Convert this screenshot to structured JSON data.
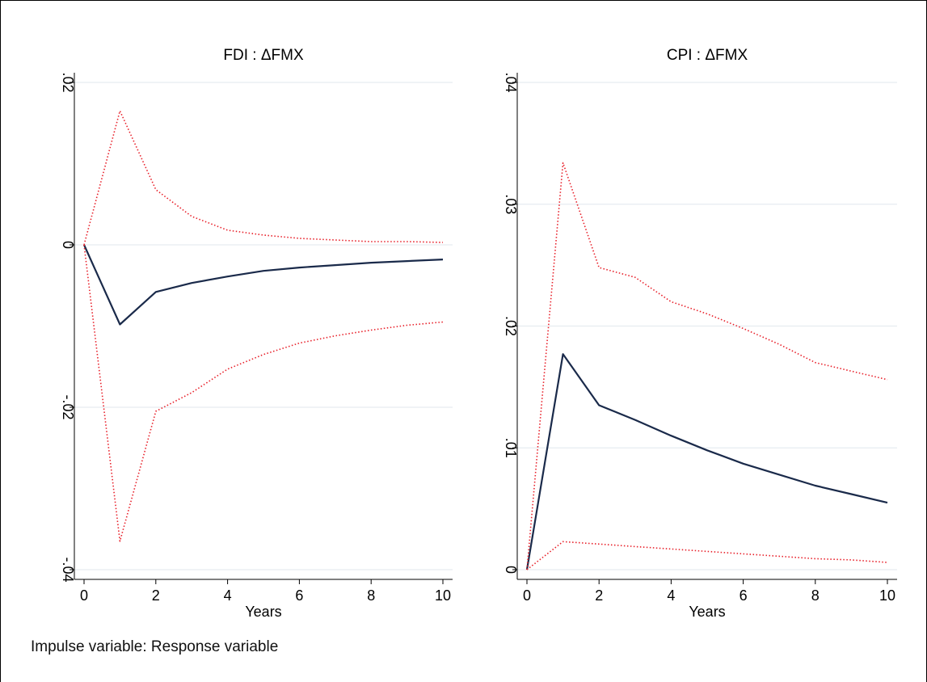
{
  "note": "Impulse variable: Response variable",
  "colors": {
    "irf": "#1a2a4a",
    "ci": "#e8202a",
    "grid": "#e6ecf0",
    "axis": "#000000"
  },
  "chart_data": [
    {
      "type": "line",
      "title": "FDI : ΔFMX",
      "xlabel": "Years",
      "ylabel": "",
      "xlim": [
        0,
        10
      ],
      "ylim": [
        -0.04,
        0.02
      ],
      "xticks": [
        0,
        2,
        4,
        6,
        8,
        10
      ],
      "xtick_labels": [
        "0",
        "2",
        "4",
        "6",
        "8",
        "10"
      ],
      "yticks": [
        -0.04,
        -0.02,
        0,
        0.02
      ],
      "ytick_labels": [
        "-.04",
        "-.02",
        "0",
        ".02"
      ],
      "grid": true,
      "x": [
        0,
        1,
        2,
        3,
        4,
        5,
        6,
        7,
        8,
        9,
        10
      ],
      "series": [
        {
          "role": "irf",
          "style": "solid",
          "values": [
            0,
            -0.0098,
            -0.0058,
            -0.0047,
            -0.0039,
            -0.0032,
            -0.0028,
            -0.0025,
            -0.0022,
            -0.002,
            -0.0018
          ]
        },
        {
          "role": "upper",
          "style": "dotted",
          "values": [
            0,
            0.0165,
            0.0068,
            0.0035,
            0.0018,
            0.0012,
            0.0008,
            0.0006,
            0.0004,
            0.0004,
            0.0003
          ]
        },
        {
          "role": "lower",
          "style": "dotted",
          "values": [
            0,
            -0.0365,
            -0.0205,
            -0.0182,
            -0.0153,
            -0.0135,
            -0.0121,
            -0.0112,
            -0.0105,
            -0.0099,
            -0.0095
          ]
        }
      ]
    },
    {
      "type": "line",
      "title": "CPI : ΔFMX",
      "xlabel": "Years",
      "ylabel": "",
      "xlim": [
        0,
        10
      ],
      "ylim": [
        0,
        0.04
      ],
      "xticks": [
        0,
        2,
        4,
        6,
        8,
        10
      ],
      "xtick_labels": [
        "0",
        "2",
        "4",
        "6",
        "8",
        "10"
      ],
      "yticks": [
        0,
        0.01,
        0.02,
        0.03,
        0.04
      ],
      "ytick_labels": [
        "0",
        ".01",
        ".02",
        ".03",
        ".04"
      ],
      "grid": true,
      "x": [
        0,
        1,
        2,
        3,
        4,
        5,
        6,
        7,
        8,
        9,
        10
      ],
      "series": [
        {
          "role": "irf",
          "style": "solid",
          "values": [
            0,
            0.0177,
            0.0135,
            0.0123,
            0.011,
            0.0098,
            0.0087,
            0.0078,
            0.0069,
            0.0062,
            0.0055
          ]
        },
        {
          "role": "upper",
          "style": "dotted",
          "values": [
            0,
            0.0334,
            0.0248,
            0.024,
            0.022,
            0.021,
            0.0198,
            0.0185,
            0.017,
            0.0163,
            0.0156
          ]
        },
        {
          "role": "lower",
          "style": "dotted",
          "values": [
            0,
            0.0023,
            0.0021,
            0.0019,
            0.0017,
            0.0015,
            0.0013,
            0.0011,
            0.0009,
            0.0008,
            0.0006
          ]
        }
      ]
    }
  ]
}
